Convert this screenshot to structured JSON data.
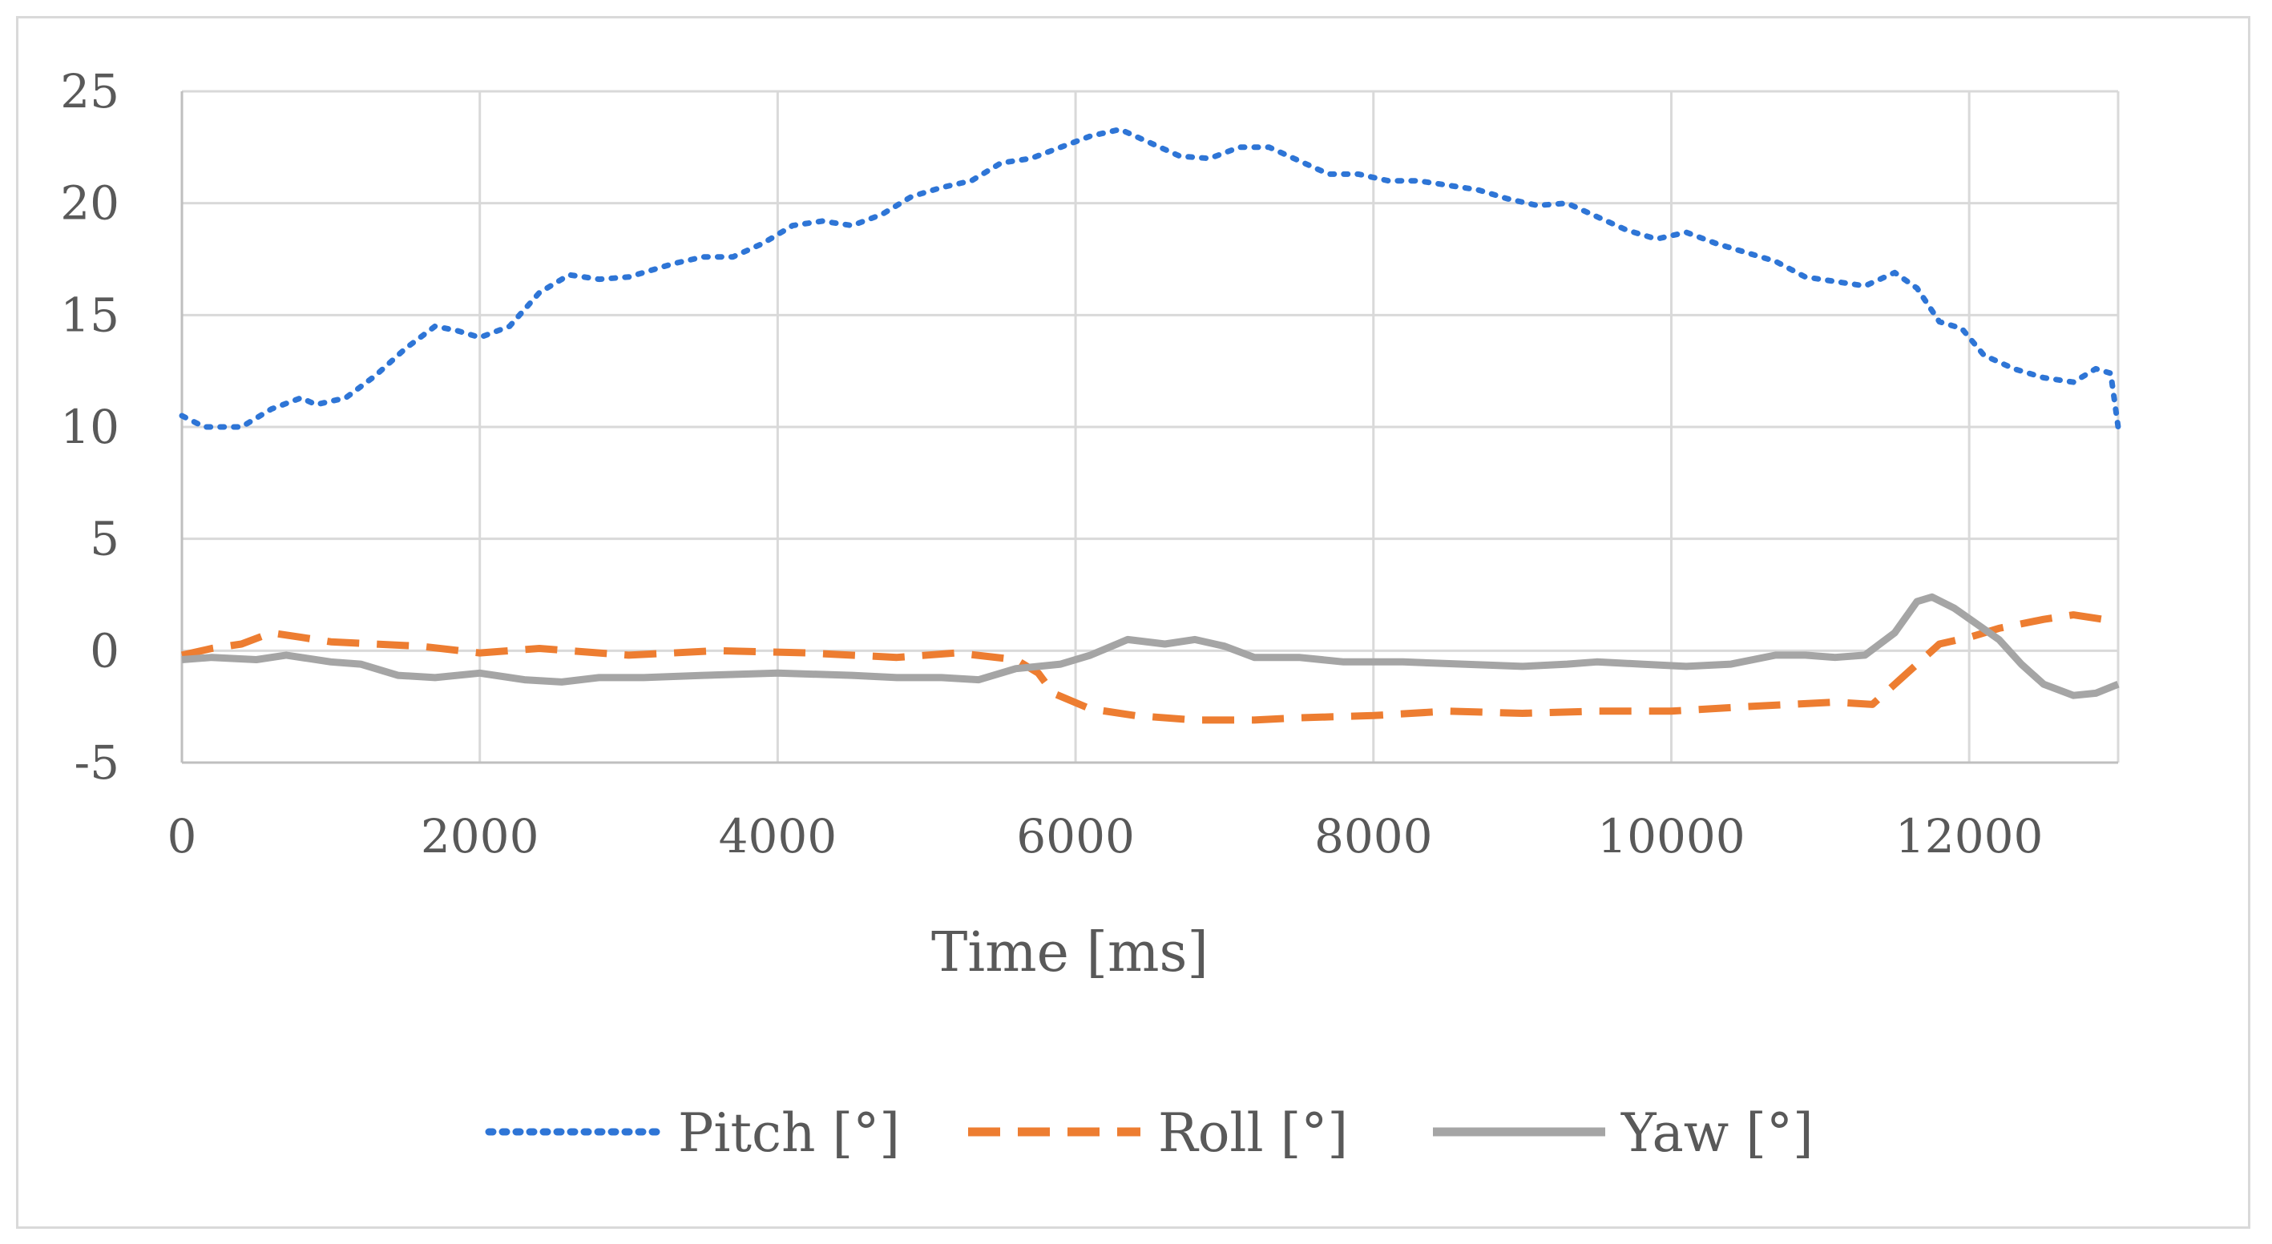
{
  "chart_data": {
    "type": "line",
    "title": "",
    "xlabel": "Time [ms]",
    "ylabel": "",
    "xlim": [
      0,
      13000
    ],
    "ylim": [
      -5,
      25
    ],
    "x_ticks": [
      0,
      2000,
      4000,
      6000,
      8000,
      10000,
      12000
    ],
    "y_ticks": [
      -5,
      0,
      5,
      10,
      15,
      20,
      25
    ],
    "x_tick_labels": [
      "0",
      "2000",
      "4000",
      "6000",
      "8000",
      "10000",
      "12000"
    ],
    "y_tick_labels": [
      "-5",
      "0",
      "5",
      "10",
      "15",
      "20",
      "25"
    ],
    "grid": true,
    "legend_position": "bottom",
    "series": [
      {
        "name": "Pitch [°]",
        "color": "#2e75d6",
        "style": "dotted",
        "points": [
          [
            0,
            10.5
          ],
          [
            150,
            10.0
          ],
          [
            400,
            10.0
          ],
          [
            600,
            10.8
          ],
          [
            800,
            11.3
          ],
          [
            900,
            11.0
          ],
          [
            1100,
            11.3
          ],
          [
            1300,
            12.3
          ],
          [
            1500,
            13.5
          ],
          [
            1700,
            14.5
          ],
          [
            1850,
            14.3
          ],
          [
            2000,
            14.0
          ],
          [
            2200,
            14.5
          ],
          [
            2400,
            16.0
          ],
          [
            2600,
            16.8
          ],
          [
            2800,
            16.6
          ],
          [
            3000,
            16.7
          ],
          [
            3300,
            17.3
          ],
          [
            3500,
            17.6
          ],
          [
            3700,
            17.6
          ],
          [
            3900,
            18.2
          ],
          [
            4100,
            19.0
          ],
          [
            4300,
            19.2
          ],
          [
            4500,
            19.0
          ],
          [
            4700,
            19.5
          ],
          [
            4900,
            20.3
          ],
          [
            5100,
            20.7
          ],
          [
            5300,
            21.0
          ],
          [
            5500,
            21.8
          ],
          [
            5700,
            22.0
          ],
          [
            5900,
            22.5
          ],
          [
            6100,
            23.0
          ],
          [
            6300,
            23.3
          ],
          [
            6500,
            22.7
          ],
          [
            6700,
            22.1
          ],
          [
            6900,
            22.0
          ],
          [
            7100,
            22.5
          ],
          [
            7300,
            22.5
          ],
          [
            7500,
            21.9
          ],
          [
            7700,
            21.3
          ],
          [
            7900,
            21.3
          ],
          [
            8100,
            21.0
          ],
          [
            8300,
            21.0
          ],
          [
            8500,
            20.8
          ],
          [
            8700,
            20.6
          ],
          [
            8900,
            20.2
          ],
          [
            9100,
            19.9
          ],
          [
            9300,
            20.0
          ],
          [
            9500,
            19.4
          ],
          [
            9700,
            18.8
          ],
          [
            9900,
            18.4
          ],
          [
            10100,
            18.7
          ],
          [
            10300,
            18.2
          ],
          [
            10500,
            17.8
          ],
          [
            10700,
            17.4
          ],
          [
            10900,
            16.7
          ],
          [
            11100,
            16.5
          ],
          [
            11300,
            16.3
          ],
          [
            11500,
            16.9
          ],
          [
            11650,
            16.2
          ],
          [
            11800,
            14.7
          ],
          [
            11950,
            14.4
          ],
          [
            12100,
            13.2
          ],
          [
            12300,
            12.6
          ],
          [
            12500,
            12.2
          ],
          [
            12700,
            12.0
          ],
          [
            12850,
            12.6
          ],
          [
            12950,
            12.4
          ],
          [
            13000,
            10.0
          ]
        ]
      },
      {
        "name": "Roll [°]",
        "color": "#ed7d31",
        "style": "dashed",
        "points": [
          [
            0,
            -0.2
          ],
          [
            200,
            0.1
          ],
          [
            400,
            0.3
          ],
          [
            600,
            0.8
          ],
          [
            800,
            0.6
          ],
          [
            1000,
            0.4
          ],
          [
            1300,
            0.3
          ],
          [
            1600,
            0.2
          ],
          [
            2000,
            -0.1
          ],
          [
            2400,
            0.1
          ],
          [
            3000,
            -0.2
          ],
          [
            3600,
            0.0
          ],
          [
            4200,
            -0.1
          ],
          [
            4800,
            -0.3
          ],
          [
            5200,
            -0.1
          ],
          [
            5600,
            -0.4
          ],
          [
            5750,
            -1.0
          ],
          [
            5850,
            -1.9
          ],
          [
            6100,
            -2.6
          ],
          [
            6400,
            -2.9
          ],
          [
            6800,
            -3.1
          ],
          [
            7200,
            -3.1
          ],
          [
            7500,
            -3.0
          ],
          [
            8000,
            -2.9
          ],
          [
            8500,
            -2.7
          ],
          [
            9000,
            -2.8
          ],
          [
            9500,
            -2.7
          ],
          [
            10000,
            -2.7
          ],
          [
            10500,
            -2.5
          ],
          [
            10800,
            -2.4
          ],
          [
            11100,
            -2.3
          ],
          [
            11350,
            -2.4
          ],
          [
            11550,
            -1.2
          ],
          [
            11800,
            0.3
          ],
          [
            12000,
            0.6
          ],
          [
            12200,
            1.0
          ],
          [
            12500,
            1.4
          ],
          [
            12700,
            1.6
          ],
          [
            13000,
            1.3
          ]
        ]
      },
      {
        "name": "Yaw [°]",
        "color": "#a5a5a5",
        "style": "solid",
        "points": [
          [
            0,
            -0.4
          ],
          [
            200,
            -0.3
          ],
          [
            500,
            -0.4
          ],
          [
            700,
            -0.2
          ],
          [
            1000,
            -0.5
          ],
          [
            1200,
            -0.6
          ],
          [
            1450,
            -1.1
          ],
          [
            1700,
            -1.2
          ],
          [
            2000,
            -1.0
          ],
          [
            2300,
            -1.3
          ],
          [
            2550,
            -1.4
          ],
          [
            2800,
            -1.2
          ],
          [
            3100,
            -1.2
          ],
          [
            3500,
            -1.1
          ],
          [
            4000,
            -1.0
          ],
          [
            4500,
            -1.1
          ],
          [
            4800,
            -1.2
          ],
          [
            5100,
            -1.2
          ],
          [
            5350,
            -1.3
          ],
          [
            5600,
            -0.8
          ],
          [
            5900,
            -0.6
          ],
          [
            6100,
            -0.2
          ],
          [
            6350,
            0.5
          ],
          [
            6600,
            0.3
          ],
          [
            6800,
            0.5
          ],
          [
            7000,
            0.2
          ],
          [
            7200,
            -0.3
          ],
          [
            7500,
            -0.3
          ],
          [
            7800,
            -0.5
          ],
          [
            8200,
            -0.5
          ],
          [
            8600,
            -0.6
          ],
          [
            9000,
            -0.7
          ],
          [
            9300,
            -0.6
          ],
          [
            9500,
            -0.5
          ],
          [
            9800,
            -0.6
          ],
          [
            10100,
            -0.7
          ],
          [
            10400,
            -0.6
          ],
          [
            10700,
            -0.2
          ],
          [
            10900,
            -0.2
          ],
          [
            11100,
            -0.3
          ],
          [
            11300,
            -0.2
          ],
          [
            11500,
            0.8
          ],
          [
            11650,
            2.2
          ],
          [
            11750,
            2.4
          ],
          [
            11900,
            1.9
          ],
          [
            12050,
            1.2
          ],
          [
            12200,
            0.5
          ],
          [
            12350,
            -0.6
          ],
          [
            12500,
            -1.5
          ],
          [
            12700,
            -2.0
          ],
          [
            12850,
            -1.9
          ],
          [
            13000,
            -1.5
          ]
        ]
      }
    ]
  }
}
